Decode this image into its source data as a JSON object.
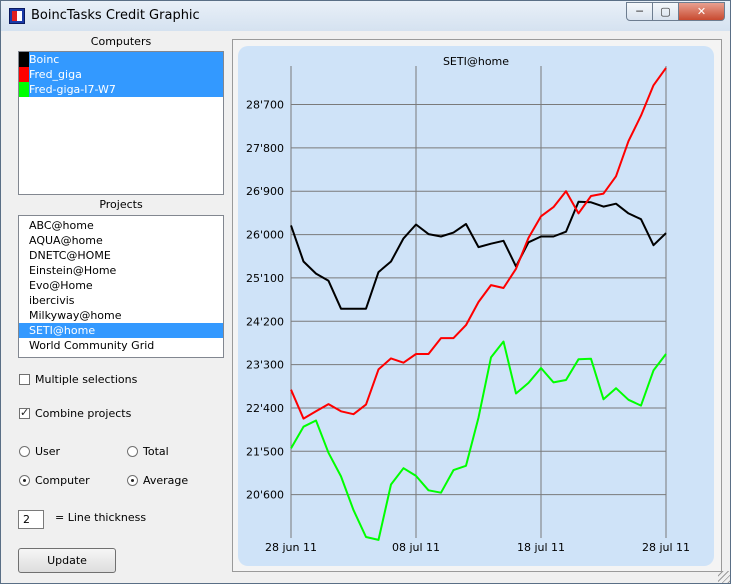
{
  "window": {
    "title": "BoincTasks Credit Graphic",
    "minimize": "─",
    "maximize": "▢",
    "close": "✕"
  },
  "computers": {
    "label": "Computers",
    "items": [
      {
        "name": "Boinc",
        "color": "#000000",
        "selected": true
      },
      {
        "name": "Fred_giga",
        "color": "#ff0000",
        "selected": true
      },
      {
        "name": "Fred-giga-I7-W7",
        "color": "#00ff00",
        "selected": true
      }
    ]
  },
  "projects": {
    "label": "Projects",
    "items": [
      {
        "name": "ABC@home",
        "selected": false
      },
      {
        "name": "AQUA@home",
        "selected": false
      },
      {
        "name": "DNETC@HOME",
        "selected": false
      },
      {
        "name": "Einstein@Home",
        "selected": false
      },
      {
        "name": "Evo@Home",
        "selected": false
      },
      {
        "name": "ibercivis",
        "selected": false
      },
      {
        "name": "Milkyway@home",
        "selected": false
      },
      {
        "name": "SETI@home",
        "selected": true
      },
      {
        "name": "World Community Grid",
        "selected": false
      }
    ]
  },
  "options": {
    "multiple_selections": {
      "label": "Multiple selections",
      "checked": false
    },
    "combine_projects": {
      "label": "Combine projects",
      "checked": true
    },
    "user": {
      "label": "User",
      "checked": false
    },
    "total": {
      "label": "Total",
      "checked": false
    },
    "computer": {
      "label": "Computer",
      "checked": true
    },
    "average": {
      "label": "Average",
      "checked": true
    }
  },
  "line_thickness": {
    "value": "2",
    "label": "= Line thickness"
  },
  "update_label": "Update",
  "chart_data": {
    "type": "line",
    "title": "SETI@home",
    "xlabel": "",
    "ylabel": "",
    "x_ticks": [
      {
        "label": "28 jun 11",
        "day": 0
      },
      {
        "label": "08 jul 11",
        "day": 10
      },
      {
        "label": "18 jul 11",
        "day": 20
      },
      {
        "label": "28 jul 11",
        "day": 30
      }
    ],
    "xlim": [
      0,
      30
    ],
    "y_ticks": [
      20600,
      21500,
      22400,
      23300,
      24200,
      25100,
      26000,
      26900,
      27800,
      28700
    ],
    "y_tick_labels": [
      "20'600",
      "21'500",
      "22'400",
      "23'300",
      "24'200",
      "25'100",
      "26'000",
      "26'900",
      "27'800",
      "28'700"
    ],
    "ylim": [
      19700,
      29500
    ],
    "grid": true,
    "series": [
      {
        "color": "#000000",
        "x": [
          0,
          1,
          2,
          3,
          4,
          5,
          6,
          7,
          8,
          9,
          10,
          11,
          12,
          13,
          14,
          15,
          16,
          17,
          18,
          19,
          20,
          21,
          22,
          23,
          24,
          25,
          26,
          27,
          28,
          29,
          30
        ],
        "values": [
          26190,
          25440,
          25190,
          25040,
          24460,
          24460,
          24460,
          25220,
          25440,
          25920,
          26210,
          26010,
          25960,
          26040,
          26220,
          25740,
          25810,
          25870,
          25340,
          25840,
          25960,
          25960,
          26060,
          26680,
          26670,
          26580,
          26640,
          26440,
          26320,
          25780,
          26030
        ]
      },
      {
        "color": "#ff0000",
        "x": [
          0,
          1,
          2,
          3,
          4,
          5,
          6,
          7,
          8,
          9,
          10,
          11,
          12,
          13,
          14,
          15,
          16,
          17,
          18,
          19,
          20,
          21,
          22,
          23,
          24,
          25,
          26,
          27,
          28,
          29,
          30
        ],
        "values": [
          22780,
          22180,
          22330,
          22480,
          22330,
          22270,
          22470,
          23200,
          23430,
          23340,
          23520,
          23520,
          23850,
          23850,
          24120,
          24600,
          24950,
          24890,
          25290,
          25930,
          26380,
          26570,
          26900,
          26440,
          26800,
          26850,
          27210,
          27940,
          28470,
          29100,
          29460
        ]
      },
      {
        "color": "#00ff00",
        "x": [
          0,
          1,
          2,
          3,
          4,
          5,
          6,
          7,
          8,
          9,
          10,
          11,
          12,
          13,
          14,
          15,
          16,
          17,
          18,
          19,
          20,
          21,
          22,
          23,
          24,
          25,
          26,
          27,
          28,
          29,
          30
        ],
        "values": [
          21560,
          22010,
          22140,
          21470,
          20980,
          20280,
          19720,
          19660,
          20810,
          21150,
          20990,
          20690,
          20640,
          21110,
          21200,
          22200,
          23450,
          23780,
          22700,
          22920,
          23230,
          22930,
          22980,
          23410,
          23420,
          22580,
          22810,
          22570,
          22450,
          23180,
          23520
        ]
      }
    ]
  }
}
